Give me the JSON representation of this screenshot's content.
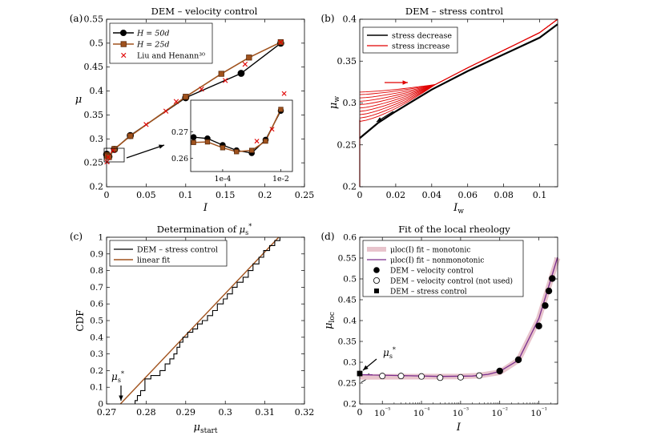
{
  "chart_data": [
    {
      "panel": "(a)",
      "type": "line",
      "title": "DEM – velocity control",
      "xlabel": "I",
      "ylabel": "μ",
      "xlim": [
        0,
        0.25
      ],
      "ylim": [
        0.2,
        0.55
      ],
      "xticks": [
        "0",
        "0.05",
        "0.1",
        "0.15",
        "0.2",
        "0.25"
      ],
      "yticks": [
        "0.2",
        "0.25",
        "0.3",
        "0.35",
        "0.4",
        "0.45",
        "0.5",
        "0.55"
      ],
      "legend": [
        "H = 50d",
        "H = 25d",
        "Liu and Henann³⁰"
      ],
      "legend_placement": "top-left",
      "series": [
        {
          "name": "H = 50d",
          "color": "#000000",
          "marker": "circle",
          "x": [
            0.0001,
            0.0003,
            0.001,
            0.003,
            0.01,
            0.03,
            0.1,
            0.17,
            0.22
          ],
          "y": [
            0.267,
            0.268,
            0.265,
            0.263,
            0.278,
            0.307,
            0.386,
            0.437,
            0.5
          ]
        },
        {
          "name": "H = 25d",
          "color": "#a0521d",
          "marker": "square",
          "x": [
            0.0001,
            0.0003,
            0.001,
            0.003,
            0.01,
            0.03,
            0.1,
            0.145,
            0.18,
            0.22
          ],
          "y": [
            0.266,
            0.266,
            0.264,
            0.262,
            0.279,
            0.306,
            0.388,
            0.436,
            0.47,
            0.502
          ]
        },
        {
          "name": "Liu and Henann³⁰",
          "color": "#e00000",
          "marker": "x",
          "x": [
            0.0005,
            0.002,
            0.008,
            0.05,
            0.075,
            0.088,
            0.12,
            0.15,
            0.175,
            0.22
          ],
          "y": [
            0.252,
            0.262,
            0.276,
            0.33,
            0.358,
            0.378,
            0.404,
            0.422,
            0.456,
            0.502
          ]
        }
      ],
      "inset": {
        "xscale": "log",
        "xticks": [
          "1e-4",
          "1e-2"
        ],
        "yticks": [
          "0.26",
          "0.27"
        ],
        "ylim": [
          0.255,
          0.282
        ],
        "series": [
          {
            "name": "H = 50d",
            "x": [
              1e-05,
              3e-05,
              0.0001,
              0.0003,
              0.001,
              0.003,
              0.01
            ],
            "y": [
              0.268,
              0.2675,
              0.265,
              0.263,
              0.262,
              0.267,
              0.278
            ]
          },
          {
            "name": "H = 25d",
            "x": [
              1e-05,
              3e-05,
              0.0001,
              0.0003,
              0.001,
              0.003,
              0.01
            ],
            "y": [
              0.266,
              0.2662,
              0.264,
              0.2625,
              0.263,
              0.2665,
              0.2785
            ]
          },
          {
            "name": "Liu and Henann³⁰",
            "x": [
              0.0015,
              0.005,
              0.013
            ],
            "y": [
              0.2665,
              0.271,
              0.2845
            ]
          }
        ]
      }
    },
    {
      "panel": "(b)",
      "type": "line",
      "title": "DEM – stress control",
      "xlabel": "I_w",
      "ylabel": "μ_w",
      "xlim": [
        0,
        0.11
      ],
      "ylim": [
        0.2,
        0.4
      ],
      "xticks": [
        "0",
        "0.02",
        "0.04",
        "0.06",
        "0.08",
        "0.1"
      ],
      "yticks": [
        "0.2",
        "0.25",
        "0.3",
        "0.35",
        "0.4"
      ],
      "legend": [
        "stress decrease",
        "stress increase"
      ],
      "legend_placement": "top-left",
      "series": [
        {
          "name": "stress decrease",
          "color": "#000000",
          "x": [
            0,
            0.01,
            0.02,
            0.04,
            0.06,
            0.08,
            0.1,
            0.11
          ],
          "y": [
            0.258,
            0.276,
            0.29,
            0.316,
            0.338,
            0.358,
            0.378,
            0.394
          ]
        },
        {
          "name": "stress increase",
          "color": "#e00000",
          "start_y": [
            0.278,
            0.282,
            0.286,
            0.29,
            0.294,
            0.298,
            0.302,
            0.306,
            0.31,
            0.313
          ],
          "merge_x": 0.042,
          "merge_y": 0.322,
          "end": {
            "x": 0.11,
            "y": 0.4
          }
        }
      ]
    },
    {
      "panel": "(c)",
      "type": "line",
      "title": "Determination of μs*",
      "xlabel": "μstart",
      "ylabel": "CDF",
      "xlim": [
        0.27,
        0.32
      ],
      "ylim": [
        0,
        1
      ],
      "xticks": [
        "0.27",
        "0.28",
        "0.29",
        "0.3",
        "0.31",
        "0.32"
      ],
      "yticks": [
        "0",
        "0.1",
        "0.2",
        "0.3",
        "0.4",
        "0.5",
        "0.6",
        "0.7",
        "0.8",
        "0.9",
        "1"
      ],
      "legend": [
        "DEM – stress control",
        "linear fit"
      ],
      "legend_placement": "top-left",
      "annotation": "μs*",
      "series": [
        {
          "name": "DEM – stress control",
          "color": "#000000",
          "type": "step",
          "x": [
            0.2772,
            0.2778,
            0.2786,
            0.2797,
            0.2812,
            0.2835,
            0.2848,
            0.286,
            0.287,
            0.2878,
            0.2885,
            0.2893,
            0.2905,
            0.2918,
            0.293,
            0.2942,
            0.2955,
            0.2968,
            0.298,
            0.2995,
            0.3005,
            0.3018,
            0.303,
            0.3045,
            0.3058,
            0.307,
            0.3085,
            0.3097,
            0.3112,
            0.3125,
            0.3138
          ],
          "y": [
            0.02,
            0.05,
            0.08,
            0.15,
            0.17,
            0.2,
            0.24,
            0.27,
            0.3,
            0.34,
            0.37,
            0.4,
            0.43,
            0.45,
            0.48,
            0.5,
            0.53,
            0.56,
            0.6,
            0.63,
            0.66,
            0.7,
            0.73,
            0.76,
            0.8,
            0.84,
            0.88,
            0.92,
            0.95,
            0.98,
            1.0
          ]
        },
        {
          "name": "linear fit",
          "color": "#a0521d",
          "x": [
            0.2735,
            0.3135
          ],
          "y": [
            0,
            1
          ]
        }
      ]
    },
    {
      "panel": "(d)",
      "type": "line",
      "title": "Fit of the local rheology",
      "xlabel": "I",
      "ylabel": "μloc",
      "xscale": "log",
      "ylim": [
        0.2,
        0.6
      ],
      "xticks": [
        "0",
        "10⁻⁵",
        "10⁻⁴",
        "10⁻³",
        "10⁻²",
        "10⁻¹"
      ],
      "yticks": [
        "0.2",
        "0.25",
        "0.3",
        "0.35",
        "0.4",
        "0.45",
        "0.5",
        "0.55",
        "0.6"
      ],
      "legend": [
        "μloc(I) fit – monotonic",
        "μloc(I) fit – nonmonotonic",
        "DEM – velocity control",
        "DEM – velocity control (not used)",
        "DEM – stress control"
      ],
      "legend_placement": "top-left",
      "annotation": "μs*",
      "series": [
        {
          "name": "μloc(I) fit – monotonic",
          "color": "#e8c4cc",
          "x": [
            3e-06,
            0.001,
            0.003,
            0.01,
            0.03,
            0.1,
            0.3
          ],
          "y": [
            0.265,
            0.266,
            0.268,
            0.276,
            0.305,
            0.405,
            0.55
          ]
        },
        {
          "name": "μloc(I) fit – nonmonotonic",
          "color": "#7b2d8e",
          "x": [
            3e-06,
            3e-05,
            0.0003,
            0.002,
            0.005,
            0.01,
            0.03,
            0.1,
            0.3
          ],
          "y": [
            0.27,
            0.268,
            0.266,
            0.267,
            0.271,
            0.278,
            0.305,
            0.405,
            0.552
          ]
        },
        {
          "name": "DEM – velocity control",
          "marker": "filled-circle",
          "x": [
            0.01,
            0.03,
            0.1,
            0.145,
            0.18,
            0.22
          ],
          "y": [
            0.279,
            0.306,
            0.387,
            0.436,
            0.471,
            0.501
          ]
        },
        {
          "name": "DEM – velocity control (not used)",
          "marker": "open-circle",
          "x": [
            1e-05,
            3e-05,
            0.0001,
            0.0003,
            0.001,
            0.003
          ],
          "y": [
            0.267,
            0.267,
            0.266,
            0.263,
            0.264,
            0.268
          ]
        },
        {
          "name": "DEM – stress control",
          "marker": "filled-square",
          "x": [
            0
          ],
          "y": [
            0.273
          ]
        }
      ]
    }
  ]
}
